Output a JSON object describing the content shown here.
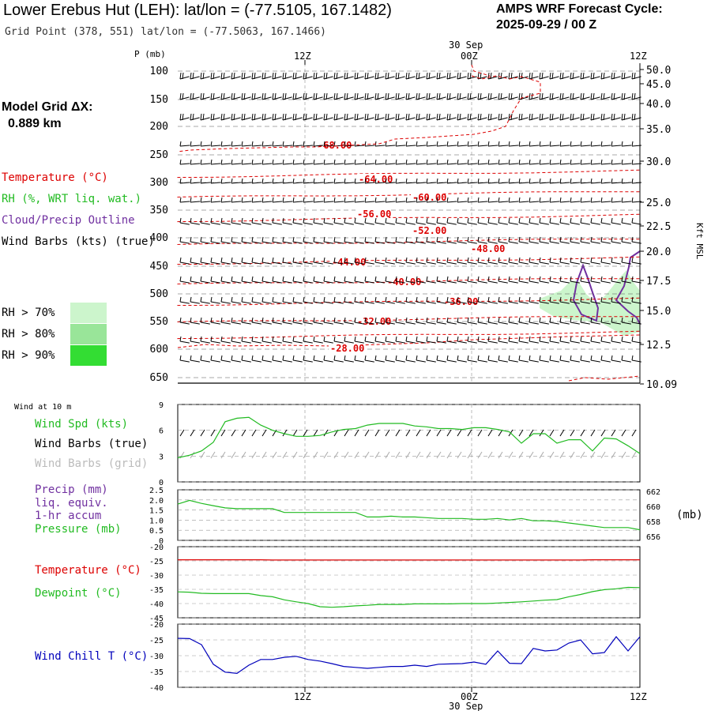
{
  "header": {
    "title": "Lower Erebus Hut (LEH):  lat/lon = (-77.5105, 167.1482)",
    "grid_point": "Grid Point (378, 551) lat/lon = (-77.5063, 167.1466)",
    "cycle_label": "AMPS WRF Forecast Cycle:",
    "cycle_value": "2025-09-29 / 00  Z"
  },
  "model_grid": {
    "label": "Model Grid ΔX:",
    "value": "0.889 km"
  },
  "colors": {
    "temperature": "#dd0000",
    "rh": "#22bb22",
    "cloud": "#7030a0",
    "wind": "#000000",
    "wind_grid": "#aaaaaa",
    "dewpoint": "#22bb22",
    "windchill": "#0000bb",
    "rh70": "#ccf5cc",
    "rh80": "#99e599",
    "rh90": "#33dd33"
  },
  "legend_upper": {
    "temperature": "Temperature (°C)",
    "rh": "RH (%, WRT liq. wat.)",
    "cloud": "Cloud/Precip Outline",
    "wind": "Wind Barbs (kts) (true)",
    "rh70": "RH > 70%",
    "rh80": "RH > 80%",
    "rh90": "RH > 90%"
  },
  "time_axis": {
    "top_date": "30 Sep",
    "bottom_date": "30 Sep",
    "ticks": [
      "12Z",
      "00Z",
      "12Z"
    ]
  },
  "chart_data": [
    {
      "id": "sounding",
      "type": "heatmap",
      "ylabel_left": "P (mb)",
      "ylabel_right": "Kft MSL",
      "pressure_ticks": [
        "100",
        "150",
        "200",
        "250",
        "300",
        "350",
        "400",
        "450",
        "500",
        "550",
        "600",
        "650"
      ],
      "height_ticks": [
        "50.0",
        "45.0",
        "40.0",
        "35.0",
        "30.0",
        "25.0",
        "22.5",
        "20.0",
        "17.5",
        "15.0",
        "12.5",
        "10.09"
      ],
      "temperature_labels": [
        "-68.00",
        "-64.00",
        "-60.00",
        "-56.00",
        "-52.00",
        "-48.00",
        "-44.00",
        "-40.00",
        "-36.00",
        "-32.00",
        "-28.00"
      ],
      "grid": true
    },
    {
      "id": "wind10m",
      "type": "line",
      "title": "Wind at 10 m",
      "legend": [
        "Wind Spd (kts)",
        "Wind Barbs (true)",
        "Wind Barbs (grid)"
      ],
      "yticks": [
        "0",
        "3",
        "6",
        "9"
      ],
      "ylim": [
        0,
        9
      ],
      "series": [
        {
          "name": "Wind Spd (kts)",
          "values": [
            2.8,
            3.1,
            3.6,
            4.6,
            7.0,
            7.4,
            7.5,
            6.6,
            6.0,
            5.6,
            5.3,
            5.3,
            5.4,
            5.8,
            6.1,
            6.2,
            6.6,
            6.8,
            6.8,
            6.8,
            6.5,
            6.4,
            6.2,
            6.2,
            6.1,
            6.3,
            6.3,
            6.1,
            5.8,
            4.5,
            5.6,
            5.6,
            4.5,
            4.9,
            4.9,
            3.6,
            5.1,
            5.0,
            4.2,
            3.3
          ]
        }
      ]
    },
    {
      "id": "precip_pressure",
      "type": "line",
      "legend": [
        "Precip (mm)",
        "liq. equiv.",
        "1-hr accum",
        "Pressure (mb)"
      ],
      "yticks_left": [
        "0",
        "0.5",
        "1.0",
        "1.5",
        "2.0",
        "2.5"
      ],
      "yticks_right": [
        "656",
        "658",
        "660",
        "662"
      ],
      "ylabel_right": "(mb)",
      "ylim_left": [
        0,
        2.5
      ],
      "ylim_right": [
        655.5,
        662.2
      ],
      "series": [
        {
          "name": "Pressure (mb)",
          "values": [
            660.3,
            660.8,
            660.4,
            660.1,
            659.8,
            659.7,
            659.7,
            659.7,
            659.7,
            659.2,
            659.2,
            659.2,
            659.2,
            659.2,
            659.2,
            659.2,
            658.6,
            658.6,
            658.7,
            658.6,
            658.6,
            658.5,
            658.4,
            658.4,
            658.4,
            658.3,
            658.3,
            658.4,
            658.2,
            658.4,
            658.1,
            658.1,
            658.0,
            657.8,
            657.6,
            657.4,
            657.2,
            657.2,
            657.2,
            656.9
          ]
        }
      ]
    },
    {
      "id": "temp_dew",
      "type": "line",
      "legend": [
        "Temperature (°C)",
        "Dewpoint (°C)"
      ],
      "yticks": [
        "-20",
        "-25",
        "-30",
        "-35",
        "-40",
        "-45"
      ],
      "ylim": [
        -45,
        -20
      ],
      "series": [
        {
          "name": "Temperature (°C)",
          "values": [
            -24.6,
            -24.6,
            -24.6,
            -24.6,
            -24.6,
            -24.6,
            -24.6,
            -24.6,
            -24.7,
            -24.7,
            -24.7,
            -24.7,
            -24.7,
            -24.7,
            -24.7,
            -24.7,
            -24.7,
            -24.7,
            -24.7,
            -24.7,
            -24.7,
            -24.7,
            -24.7,
            -24.7,
            -24.7,
            -24.7,
            -24.7,
            -24.7,
            -24.7,
            -24.7,
            -24.7,
            -24.7,
            -24.7,
            -24.7,
            -24.7,
            -24.6,
            -24.6,
            -24.6,
            -24.6,
            -24.6
          ]
        },
        {
          "name": "Dewpoint (°C)",
          "values": [
            -35.9,
            -36.0,
            -36.4,
            -36.5,
            -36.5,
            -36.5,
            -36.5,
            -37.2,
            -37.6,
            -38.7,
            -39.4,
            -40.0,
            -41.1,
            -41.3,
            -41.1,
            -40.8,
            -40.6,
            -40.3,
            -40.3,
            -40.3,
            -40.1,
            -40.1,
            -40.1,
            -40.1,
            -40.0,
            -40.0,
            -40.0,
            -39.8,
            -39.6,
            -39.4,
            -39.1,
            -38.8,
            -38.6,
            -37.6,
            -36.8,
            -35.8,
            -35.1,
            -34.8,
            -34.3,
            -34.4
          ]
        }
      ]
    },
    {
      "id": "windchill",
      "type": "line",
      "legend": [
        "Wind Chill T (°C)"
      ],
      "yticks": [
        "-20",
        "-25",
        "-30",
        "-35",
        "-40"
      ],
      "ylim": [
        -40,
        -20
      ],
      "series": [
        {
          "name": "Wind Chill T (°C)",
          "values": [
            -24.5,
            -24.6,
            -26.5,
            -32.7,
            -35.2,
            -35.6,
            -33.0,
            -31.2,
            -31.2,
            -30.5,
            -30.2,
            -31.2,
            -31.7,
            -32.5,
            -33.4,
            -33.7,
            -34.0,
            -33.7,
            -33.4,
            -33.4,
            -33.0,
            -33.4,
            -32.7,
            -32.6,
            -32.5,
            -32.0,
            -32.7,
            -28.5,
            -32.4,
            -32.5,
            -27.7,
            -28.5,
            -28.2,
            -26.0,
            -25.0,
            -29.4,
            -29.0,
            -24.0,
            -28.5,
            -24.0
          ]
        }
      ]
    }
  ]
}
